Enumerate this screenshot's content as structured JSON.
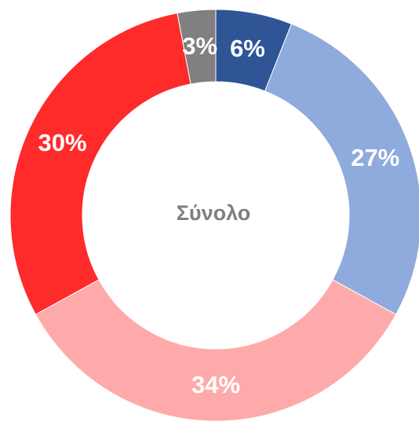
{
  "chart_data": {
    "type": "donut",
    "center_label": "Σύνολο",
    "categories": [
      null,
      null,
      null,
      null,
      null
    ],
    "values": [
      6,
      27,
      34,
      30,
      3
    ],
    "value_labels": [
      "6%",
      "27%",
      "34%",
      "30%",
      "3%"
    ],
    "colors": [
      "#2f5597",
      "#8faadc",
      "#ffaaaa",
      "#ff2a2a",
      "#808080"
    ]
  }
}
